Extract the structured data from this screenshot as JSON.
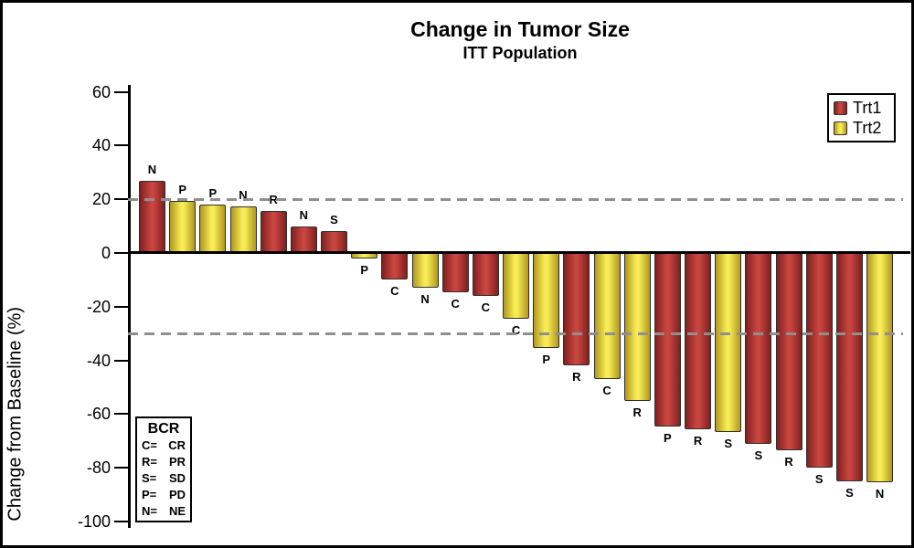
{
  "chart_data": {
    "type": "bar",
    "variant": "waterfall",
    "title": "Change in Tumor Size",
    "subtitle": "ITT Population",
    "ylabel": "Change from Baseline (%)",
    "ylim": [
      -100,
      60
    ],
    "yticks": [
      60,
      40,
      20,
      0,
      -20,
      -40,
      -60,
      -80,
      -100
    ],
    "reference_lines": [
      20,
      -30
    ],
    "grid": false,
    "legend_position": "top-right",
    "bars": [
      {
        "label": "N",
        "treatment": "Trt1",
        "value": 27
      },
      {
        "label": "P",
        "treatment": "Trt2",
        "value": 19.5
      },
      {
        "label": "P",
        "treatment": "Trt2",
        "value": 18
      },
      {
        "label": "N",
        "treatment": "Trt2",
        "value": 17.5
      },
      {
        "label": "R",
        "treatment": "Trt1",
        "value": 15.5
      },
      {
        "label": "N",
        "treatment": "Trt1",
        "value": 10
      },
      {
        "label": "S",
        "treatment": "Trt1",
        "value": 8
      },
      {
        "label": "P",
        "treatment": "Trt2",
        "value": -2
      },
      {
        "label": "C",
        "treatment": "Trt1",
        "value": -10
      },
      {
        "label": "N",
        "treatment": "Trt2",
        "value": -13
      },
      {
        "label": "C",
        "treatment": "Trt1",
        "value": -14.5
      },
      {
        "label": "C",
        "treatment": "Trt1",
        "value": -16
      },
      {
        "label": "C",
        "treatment": "Trt2",
        "value": -24.5
      },
      {
        "label": "P",
        "treatment": "Trt2",
        "value": -35.5
      },
      {
        "label": "R",
        "treatment": "Trt1",
        "value": -42
      },
      {
        "label": "C",
        "treatment": "Trt2",
        "value": -47
      },
      {
        "label": "R",
        "treatment": "Trt2",
        "value": -55
      },
      {
        "label": "P",
        "treatment": "Trt1",
        "value": -64.5
      },
      {
        "label": "R",
        "treatment": "Trt1",
        "value": -65.5
      },
      {
        "label": "S",
        "treatment": "Trt2",
        "value": -66.5
      },
      {
        "label": "S",
        "treatment": "Trt1",
        "value": -71
      },
      {
        "label": "R",
        "treatment": "Trt1",
        "value": -73.5
      },
      {
        "label": "S",
        "treatment": "Trt1",
        "value": -80
      },
      {
        "label": "S",
        "treatment": "Trt1",
        "value": -85
      },
      {
        "label": "N",
        "treatment": "Trt2",
        "value": -85.5
      }
    ]
  },
  "legend": {
    "items": [
      {
        "label": "Trt1",
        "treatment": "Trt1"
      },
      {
        "label": "Trt2",
        "treatment": "Trt2"
      }
    ]
  },
  "bcr_box": {
    "title": "BCR",
    "rows": [
      {
        "key": "C=",
        "value": "CR"
      },
      {
        "key": "R=",
        "value": "PR"
      },
      {
        "key": "S=",
        "value": "SD"
      },
      {
        "key": "P=",
        "value": "PD"
      },
      {
        "key": "N=",
        "value": "NE"
      }
    ]
  },
  "colors": {
    "Trt1_base": "#B23230",
    "Trt1_light": "#C9453F",
    "Trt1_dark": "#7E201F",
    "Trt2_base": "#EDDC3C",
    "Trt2_light": "#F7EC55",
    "Trt2_dark": "#B1971F",
    "reference_line": "#8F8F8F",
    "axis": "#000000",
    "background": "#FFFFFF"
  }
}
